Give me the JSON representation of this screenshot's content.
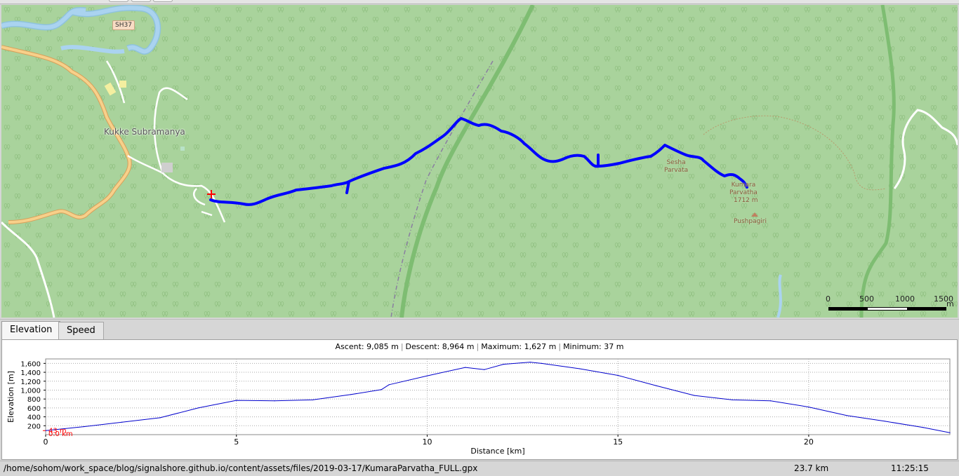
{
  "map": {
    "places": {
      "town": "Kukke Subramanya",
      "sesha": "Sesha\nParvata",
      "kumara_name": "Kumara\nParvatha",
      "kumara_ele": "1712 m",
      "pushpagiri": "Pushpagiri",
      "road_shield": "SH37"
    },
    "scale": {
      "labels": [
        "0",
        "500",
        "1000",
        "1500"
      ],
      "unit": "m"
    },
    "colors": {
      "forest": "#a9d39c",
      "track": "#0000ff",
      "road_main": "#f3c27e",
      "water": "#a8d4ef",
      "start_marker": "#ff0000"
    },
    "icons": [
      "start-marker-icon",
      "peak-icon",
      "tree-icon"
    ]
  },
  "tabs": {
    "elevation": "Elevation",
    "speed": "Speed"
  },
  "stats": {
    "ascent": "Ascent: 9,085 m",
    "descent": "Descent: 8,964 m",
    "maximum": "Maximum: 1,627 m",
    "minimum": "Minimum: 37 m"
  },
  "chart_data": {
    "type": "line",
    "title": "",
    "xlabel": "Distance [km]",
    "ylabel": "Elevation [m]",
    "xlim": [
      0,
      23.7
    ],
    "ylim": [
      0,
      1700
    ],
    "xticks": [
      0,
      5,
      10,
      15,
      20
    ],
    "yticks": [
      200,
      400,
      600,
      800,
      1000,
      1200,
      1400,
      1600
    ],
    "ytick_labels": [
      "200",
      "400",
      "600",
      "800",
      "1,000",
      "1,200",
      "1,400",
      "1,600"
    ],
    "cursor_labels": [
      "43 m",
      "0.0 km"
    ],
    "series": [
      {
        "name": "Elevation",
        "x": [
          0,
          1,
          2,
          3,
          4,
          5,
          6,
          7,
          8,
          8.8,
          9,
          10,
          11,
          11.5,
          12,
          12.7,
          13,
          14,
          15,
          16,
          17,
          18,
          19,
          20,
          21,
          22,
          23,
          23.7
        ],
        "y": [
          90,
          180,
          280,
          380,
          600,
          770,
          760,
          780,
          900,
          1010,
          1120,
          1320,
          1510,
          1460,
          1580,
          1627,
          1600,
          1480,
          1330,
          1100,
          880,
          780,
          760,
          620,
          430,
          300,
          160,
          43
        ]
      }
    ]
  },
  "status": {
    "path": "/home/sohom/work_space/blog/signalshore.github.io/content/assets/files/2019-03-17/KumaraParvatha_FULL.gpx",
    "distance": "23.7 km",
    "time": "11:25:15"
  }
}
